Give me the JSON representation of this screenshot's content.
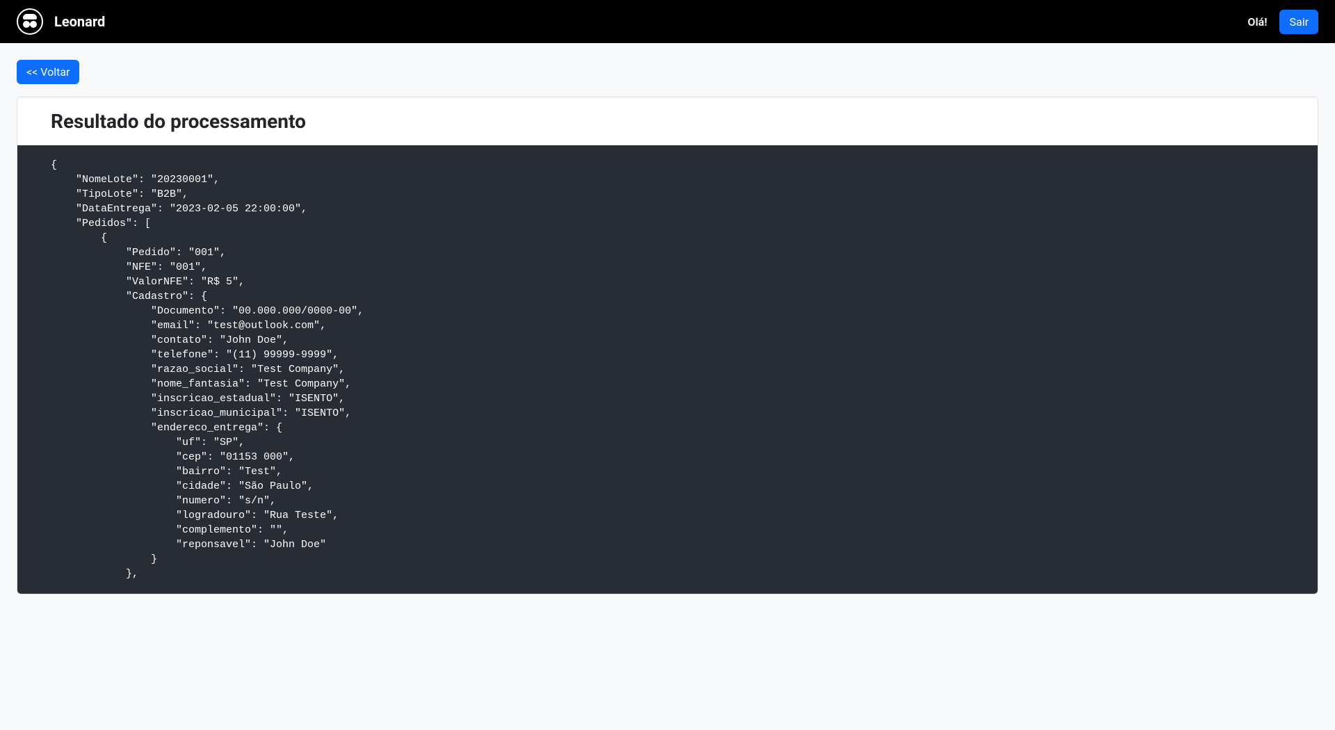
{
  "navbar": {
    "brand": "Leonard",
    "greeting": "Olá!",
    "logout_label": "Sair"
  },
  "page": {
    "back_button_label": "<< Voltar",
    "card_title": "Resultado do processamento"
  },
  "code_content": "{\n    \"NomeLote\": \"20230001\",\n    \"TipoLote\": \"B2B\",\n    \"DataEntrega\": \"2023-02-05 22:00:00\",\n    \"Pedidos\": [\n        {\n            \"Pedido\": \"001\",\n            \"NFE\": \"001\",\n            \"ValorNFE\": \"R$ 5\",\n            \"Cadastro\": {\n                \"Documento\": \"00.000.000/0000-00\",\n                \"email\": \"test@outlook.com\",\n                \"contato\": \"John Doe\",\n                \"telefone\": \"(11) 99999-9999\",\n                \"razao_social\": \"Test Company\",\n                \"nome_fantasia\": \"Test Company\",\n                \"inscricao_estadual\": \"ISENTO\",\n                \"inscricao_municipal\": \"ISENTO\",\n                \"endereco_entrega\": {\n                    \"uf\": \"SP\",\n                    \"cep\": \"01153 000\",\n                    \"bairro\": \"Test\",\n                    \"cidade\": \"São Paulo\",\n                    \"numero\": \"s/n\",\n                    \"logradouro\": \"Rua Teste\",\n                    \"complemento\": \"\",\n                    \"reponsavel\": \"John Doe\"\n                }\n            },",
  "colors": {
    "navbar_bg": "#000000",
    "navbar_text": "#ffffff",
    "body_bg": "#f8f9fa",
    "btn_primary": "#0d6efd",
    "btn_text": "#ffffff",
    "code_bg": "#282c34",
    "code_text": "#ffffff",
    "card_border": "#dee2e6",
    "title_color": "#212529"
  }
}
